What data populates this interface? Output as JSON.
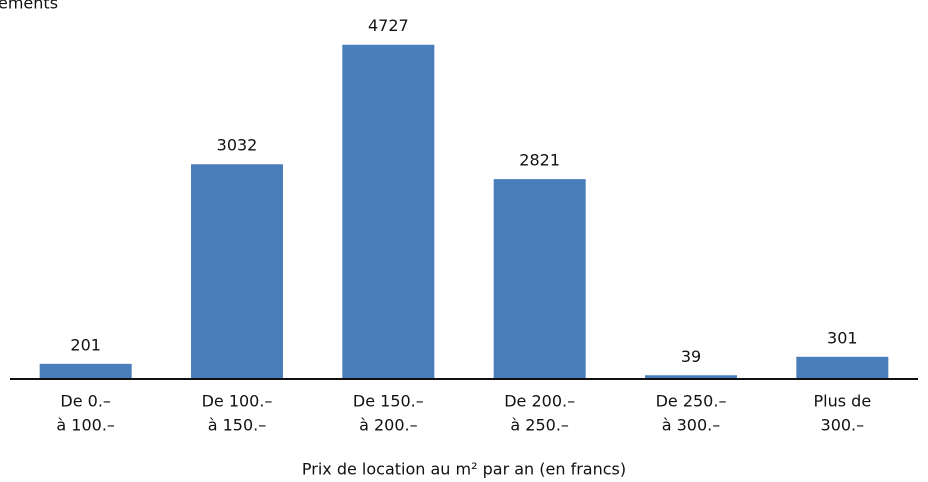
{
  "chart_data": {
    "type": "bar",
    "title": "ements",
    "x_label": "Prix de location au m² par an (en francs)",
    "categories": [
      [
        "De 0.–",
        "à 100.–"
      ],
      [
        "De 100.–",
        "à 150.–"
      ],
      [
        "De 150.–",
        "à 200.–"
      ],
      [
        "De 200.–",
        "à 250.–"
      ],
      [
        "De 250.–",
        "à 300.–"
      ],
      [
        "Plus de",
        "300.–"
      ]
    ],
    "values": [
      201,
      3032,
      4727,
      2821,
      39,
      301
    ],
    "color": "#4a7ebb"
  }
}
